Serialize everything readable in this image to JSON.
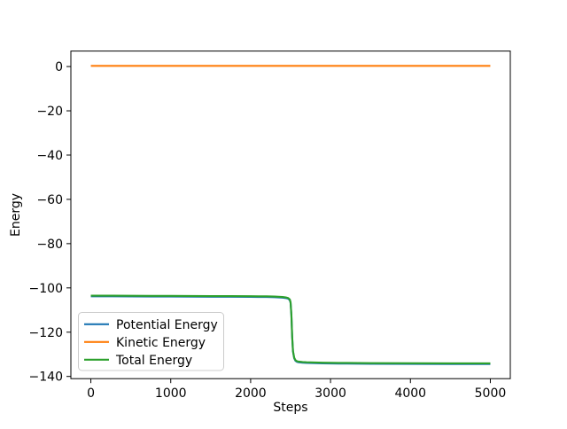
{
  "chart_data": {
    "type": "line",
    "title": "",
    "xlabel": "Steps",
    "ylabel": "Energy",
    "xlim": [
      -250,
      5250
    ],
    "ylim": [
      -141,
      7
    ],
    "xticks": [
      0,
      1000,
      2000,
      3000,
      4000,
      5000
    ],
    "yticks": [
      0,
      -20,
      -40,
      -60,
      -80,
      -100,
      -120,
      -140
    ],
    "grid": false,
    "legend_position": "lower-left",
    "x": [
      0,
      250,
      500,
      750,
      1000,
      1250,
      1500,
      1750,
      2000,
      2100,
      2200,
      2300,
      2350,
      2400,
      2440,
      2470,
      2490,
      2500,
      2510,
      2520,
      2530,
      2545,
      2560,
      2580,
      2600,
      2650,
      2700,
      2800,
      2900,
      3000,
      3200,
      3500,
      4000,
      4500,
      5000
    ],
    "series": [
      {
        "name": "Potential Energy",
        "color": "#1f77b4",
        "y": [
          -103.8,
          -103.8,
          -103.85,
          -103.9,
          -103.9,
          -103.95,
          -104.0,
          -104.0,
          -104.05,
          -104.1,
          -104.1,
          -104.2,
          -104.3,
          -104.4,
          -104.6,
          -104.9,
          -105.5,
          -106.8,
          -112.3,
          -122.3,
          -128.8,
          -131.8,
          -132.9,
          -133.4,
          -133.6,
          -133.8,
          -133.9,
          -134.0,
          -134.1,
          -134.15,
          -134.2,
          -134.3,
          -134.35,
          -134.4,
          -134.4
        ]
      },
      {
        "name": "Kinetic Energy",
        "color": "#ff7f0e",
        "y": [
          0.3,
          0.3,
          0.3,
          0.3,
          0.3,
          0.3,
          0.3,
          0.3,
          0.3,
          0.3,
          0.3,
          0.3,
          0.3,
          0.3,
          0.3,
          0.3,
          0.3,
          0.3,
          0.3,
          0.3,
          0.3,
          0.3,
          0.3,
          0.3,
          0.3,
          0.3,
          0.3,
          0.3,
          0.3,
          0.3,
          0.3,
          0.3,
          0.3,
          0.3,
          0.3
        ]
      },
      {
        "name": "Total Energy",
        "color": "#2ca02c",
        "y": [
          -103.5,
          -103.5,
          -103.55,
          -103.6,
          -103.6,
          -103.65,
          -103.7,
          -103.7,
          -103.75,
          -103.8,
          -103.8,
          -103.9,
          -104.0,
          -104.1,
          -104.3,
          -104.6,
          -105.2,
          -106.5,
          -112.0,
          -122.0,
          -128.5,
          -131.5,
          -132.6,
          -133.1,
          -133.3,
          -133.5,
          -133.6,
          -133.7,
          -133.8,
          -133.85,
          -133.9,
          -134.0,
          -134.05,
          -134.1,
          -134.1
        ]
      }
    ]
  }
}
